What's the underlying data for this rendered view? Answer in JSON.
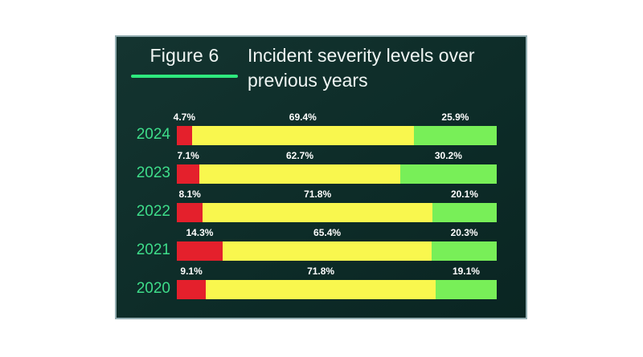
{
  "header": {
    "figure_label": "Figure 6",
    "title_line1": "Incident severity levels over",
    "title_line2": "previous years"
  },
  "colors": {
    "panel_background": "#0d2c28",
    "panel_border": "#a9c3c8",
    "accent_underline": "#2ee97e",
    "year_label": "#3edd8a",
    "segment_red": "#e4202c",
    "segment_yellow": "#f9f74e",
    "segment_green": "#78ef58",
    "text": "#f0f6f4"
  },
  "chart_data": {
    "type": "bar",
    "orientation": "horizontal-stacked",
    "title": "Incident severity levels over previous years",
    "categories": [
      "2024",
      "2023",
      "2022",
      "2021",
      "2020"
    ],
    "series": [
      {
        "name": "red",
        "color": "#e4202c",
        "values": [
          4.7,
          7.1,
          8.1,
          14.3,
          9.1
        ]
      },
      {
        "name": "yellow",
        "color": "#f9f74e",
        "values": [
          69.4,
          62.7,
          71.8,
          65.4,
          71.8
        ]
      },
      {
        "name": "green",
        "color": "#78ef58",
        "values": [
          25.9,
          30.2,
          20.1,
          20.3,
          19.1
        ]
      }
    ],
    "value_suffix": "%",
    "xlim": [
      0,
      100
    ],
    "legend": false,
    "grid": false,
    "value_labels_position": "above-segment-centered"
  }
}
